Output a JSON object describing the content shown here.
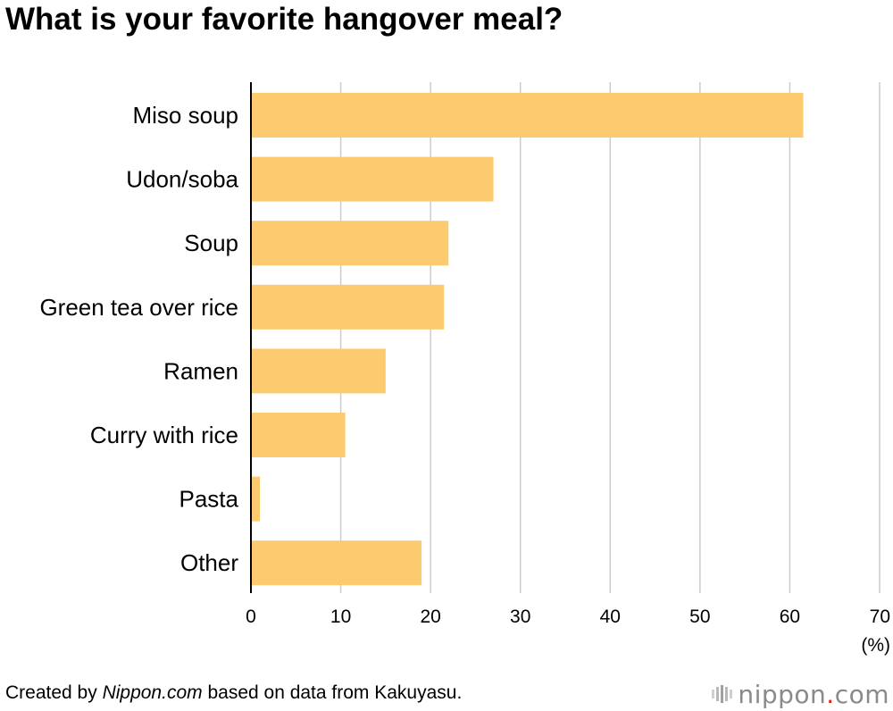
{
  "chart_data": {
    "type": "bar",
    "orientation": "horizontal",
    "title": "What is your favorite hangover meal?",
    "categories": [
      "Miso soup",
      "Udon/soba",
      "Soup",
      "Green tea over rice",
      "Ramen",
      "Curry with rice",
      "Pasta",
      "Other"
    ],
    "values": [
      61.5,
      27,
      22,
      21.5,
      15,
      10.5,
      1,
      19
    ],
    "unit_label": "(%)",
    "xlim": [
      0,
      70
    ],
    "xticks": [
      0,
      10,
      20,
      30,
      40,
      50,
      60,
      70
    ],
    "grid": true,
    "bar_color": "#fccb6f",
    "grid_color": "#cccccc"
  },
  "footer": {
    "prefix": "Created by ",
    "site": "Nippon.com",
    "suffix": " based on data from Kakuyasu."
  },
  "logo": {
    "word": "nippon",
    "dot": ".",
    "tld": "com"
  }
}
